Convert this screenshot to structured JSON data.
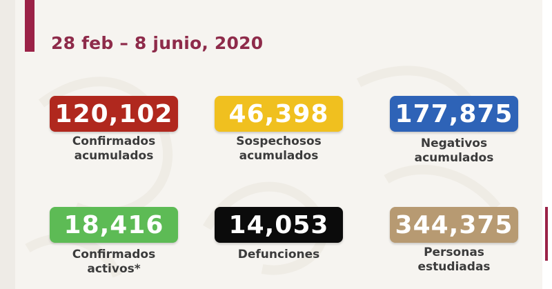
{
  "header": {
    "date_range": "28 feb – 8 junio, 2020",
    "accent_color": "#9b2247"
  },
  "stats": [
    {
      "value": "120,102",
      "label_line1": "Confirmados",
      "label_line2": "acumulados",
      "box_color": "#b0281e",
      "text_color": "#ffffff"
    },
    {
      "value": "46,398",
      "label_line1": "Sospechosos",
      "label_line2": "acumulados",
      "box_color": "#f0c01f",
      "text_color": "#ffffff"
    },
    {
      "value": "177,875",
      "label_line1": "Negativos",
      "label_line2": "acumulados",
      "box_color": "#2e63b7",
      "text_color": "#ffffff"
    },
    {
      "value": "18,416",
      "label_line1": "Confirmados",
      "label_line2": "activos*",
      "box_color": "#5dbb55",
      "text_color": "#ffffff"
    },
    {
      "value": "14,053",
      "label_line1": "Defunciones",
      "label_line2": "",
      "box_color": "#0b0b0b",
      "text_color": "#ffffff"
    },
    {
      "value": "344,375",
      "label_line1": "Personas",
      "label_line2": "estudiadas",
      "box_color": "#b79a72",
      "text_color": "#ffffff"
    }
  ]
}
